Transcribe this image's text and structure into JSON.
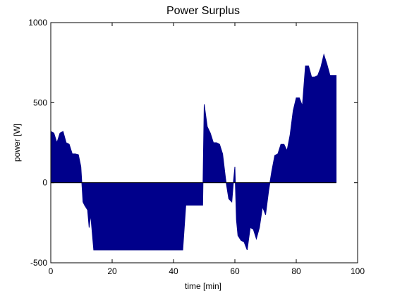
{
  "chart_data": {
    "type": "area",
    "title": "Power Surplus",
    "xlabel": "time [min]",
    "ylabel": "power [W]",
    "xlim": [
      0,
      100
    ],
    "ylim": [
      -500,
      1000
    ],
    "xticks": [
      0,
      20,
      40,
      60,
      80,
      100
    ],
    "yticks": [
      -500,
      0,
      500,
      1000
    ],
    "xtick_labels": [
      "0",
      "20",
      "40",
      "60",
      "80",
      "100"
    ],
    "ytick_labels": [
      "-500",
      "0",
      "500",
      "1000"
    ],
    "grid": false,
    "fill_color": "#00008B",
    "baseline": 0,
    "series": [
      {
        "x": [
          0,
          1,
          2,
          3,
          4,
          5,
          6,
          7,
          8,
          9,
          9.8,
          10.5,
          11,
          12,
          12.5,
          13,
          14,
          15,
          15.5,
          42,
          43,
          44,
          45,
          46,
          47,
          48,
          49.5,
          50,
          51,
          52,
          53,
          54,
          55,
          56,
          57,
          58,
          59,
          59.5,
          60,
          60.5,
          61,
          62,
          63,
          64,
          65,
          66,
          67,
          68,
          69,
          70,
          71,
          72,
          73,
          74,
          75,
          76,
          77,
          78,
          79,
          80,
          81,
          82,
          83,
          84,
          85,
          86,
          87,
          88,
          89,
          90,
          91,
          92,
          93
        ],
        "y": [
          320,
          310,
          250,
          310,
          320,
          250,
          240,
          180,
          180,
          175,
          100,
          -120,
          -140,
          -170,
          -280,
          -200,
          -420,
          -420,
          -420,
          -420,
          -420,
          -140,
          -140,
          -140,
          -140,
          -140,
          -140,
          490,
          350,
          310,
          250,
          250,
          240,
          180,
          20,
          -100,
          -120,
          0,
          100,
          -230,
          -330,
          -360,
          -370,
          -420,
          -280,
          -290,
          -350,
          -280,
          -150,
          -200,
          -50,
          70,
          170,
          180,
          240,
          240,
          200,
          300,
          450,
          530,
          530,
          480,
          730,
          730,
          660,
          660,
          670,
          720,
          800,
          740,
          670,
          670,
          670
        ]
      }
    ]
  }
}
